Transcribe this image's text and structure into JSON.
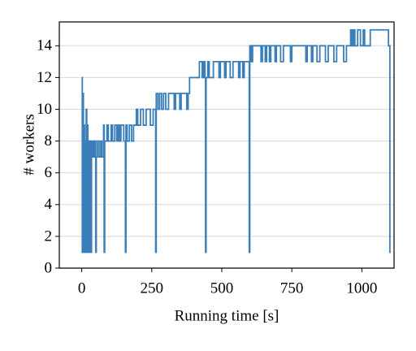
{
  "chart_data": {
    "type": "step",
    "xlabel": "Running time [s]",
    "ylabel": "# workers",
    "x": [
      0,
      2,
      4,
      6,
      8,
      10,
      12,
      14,
      16,
      18,
      20,
      22,
      26,
      30,
      35,
      40,
      45,
      50,
      52,
      56,
      62,
      68,
      72,
      78,
      80,
      82,
      90,
      95,
      105,
      110,
      118,
      125,
      130,
      135,
      140,
      150,
      156,
      158,
      162,
      170,
      178,
      185,
      195,
      200,
      210,
      220,
      230,
      245,
      255,
      264,
      266,
      272,
      278,
      285,
      292,
      300,
      310,
      330,
      335,
      350,
      355,
      375,
      380,
      385,
      420,
      430,
      435,
      440,
      442,
      444,
      450,
      455,
      470,
      490,
      495,
      510,
      515,
      530,
      540,
      560,
      565,
      575,
      580,
      598,
      600,
      605,
      610,
      640,
      645,
      655,
      660,
      670,
      675,
      690,
      695,
      710,
      720,
      745,
      750,
      800,
      805,
      820,
      825,
      840,
      850,
      870,
      880,
      900,
      910,
      935,
      945,
      960,
      965,
      970,
      975,
      985,
      995,
      1005,
      1010,
      1030,
      1095,
      1100,
      1103
    ],
    "series": [
      {
        "name": "workers",
        "color": "#3a7fba",
        "values": [
          12,
          1,
          11,
          1,
          9,
          1,
          8,
          1,
          10,
          1,
          9,
          1,
          8,
          1,
          8,
          7,
          8,
          1,
          7,
          8,
          7,
          8,
          7,
          9,
          1,
          8,
          9,
          8,
          9,
          8,
          9,
          8,
          9,
          8,
          9,
          8,
          1,
          9,
          8,
          9,
          8,
          9,
          10,
          9,
          10,
          9,
          10,
          9,
          10,
          1,
          11,
          10,
          11,
          10,
          11,
          10,
          11,
          10,
          11,
          10,
          11,
          10,
          11,
          12,
          13,
          12,
          13,
          12,
          1,
          12,
          13,
          12,
          13,
          12,
          13,
          12,
          13,
          12,
          13,
          12,
          13,
          12,
          13,
          1,
          14,
          13,
          14,
          13,
          14,
          13,
          14,
          13,
          14,
          13,
          14,
          13,
          14,
          13,
          14,
          13,
          14,
          13,
          14,
          13,
          14,
          13,
          14,
          13,
          14,
          13,
          14,
          15,
          14,
          15,
          14,
          15,
          14,
          15,
          14,
          15,
          14,
          1,
          1
        ]
      }
    ],
    "xlim": [
      -80,
      1115
    ],
    "ylim": [
      0,
      15.5
    ],
    "xticks": [
      0,
      250,
      500,
      750,
      1000
    ],
    "yticks": [
      0,
      2,
      4,
      6,
      8,
      10,
      12,
      14
    ],
    "grid": "y"
  }
}
